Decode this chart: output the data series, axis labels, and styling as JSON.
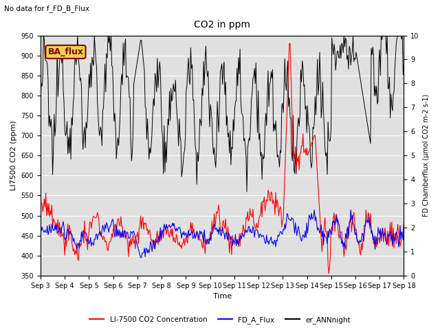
{
  "title": "CO2 in ppm",
  "top_left_text": "No data for f_FD_B_Flux",
  "legend_box_text": "BA_flux",
  "xlabel": "Time",
  "ylabel_left": "LI7500 CO2 (ppm)",
  "ylabel_right": "FD Chamberflux (μmol CO2 m-2 s-1)",
  "ylim_left": [
    350,
    950
  ],
  "ylim_right": [
    0.0,
    10.0
  ],
  "xtick_labels": [
    "Sep 3",
    "Sep 4",
    "Sep 5",
    "Sep 6",
    "Sep 7",
    "Sep 8",
    "Sep 9",
    "Sep 10",
    "Sep 11",
    "Sep 12",
    "Sep 13",
    "Sep 14",
    "Sep 15",
    "Sep 16",
    "Sep 17",
    "Sep 18"
  ],
  "bg_color": "#e0e0e0",
  "fig_color": "#ffffff",
  "line_red": "#ff0000",
  "line_blue": "#0000ff",
  "line_black": "#000000",
  "legend_labels": [
    "LI-7500 CO2 Concentration",
    "FD_A_Flux",
    "er_ANNnight"
  ],
  "legend_colors": [
    "#ff0000",
    "#0000ff",
    "#000000"
  ],
  "legend_box_bg": "#e8d44d",
  "legend_box_edge": "#8b0000",
  "seed": 12345
}
